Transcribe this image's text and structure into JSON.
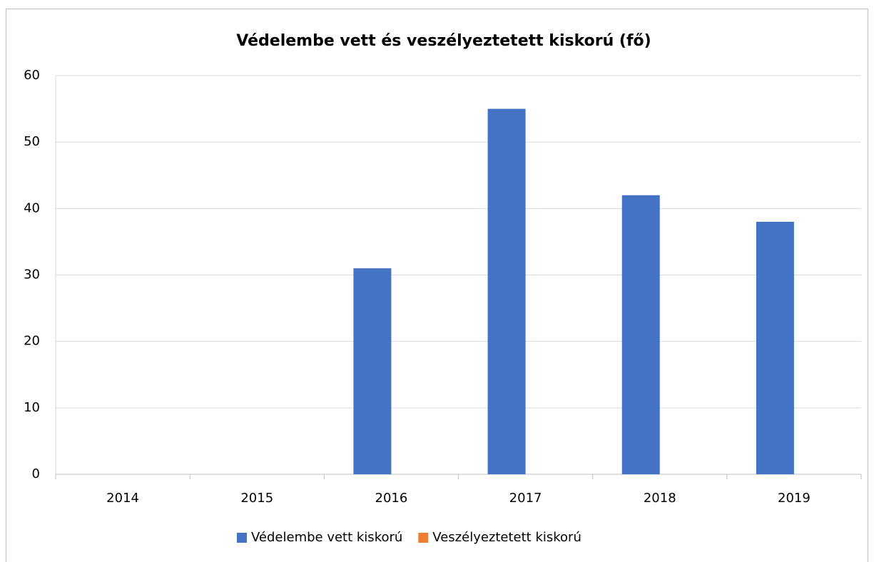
{
  "chart_data": {
    "type": "bar",
    "title": "Védelembe vett és veszélyeztetett kiskorú (fő)",
    "categories": [
      "2014",
      "2015",
      "2016",
      "2017",
      "2018",
      "2019"
    ],
    "series": [
      {
        "name": "Védelembe vett kiskorú",
        "color": "#4472c4",
        "values": [
          null,
          null,
          31,
          55,
          42,
          38
        ]
      },
      {
        "name": "Veszélyeztetett kiskorú",
        "color": "#ed7d31",
        "values": [
          null,
          null,
          null,
          null,
          null,
          null
        ]
      }
    ],
    "ylim": [
      0,
      60
    ],
    "yticks": [
      0,
      10,
      20,
      30,
      40,
      50,
      60
    ],
    "grid": true,
    "legend": "bottom"
  }
}
